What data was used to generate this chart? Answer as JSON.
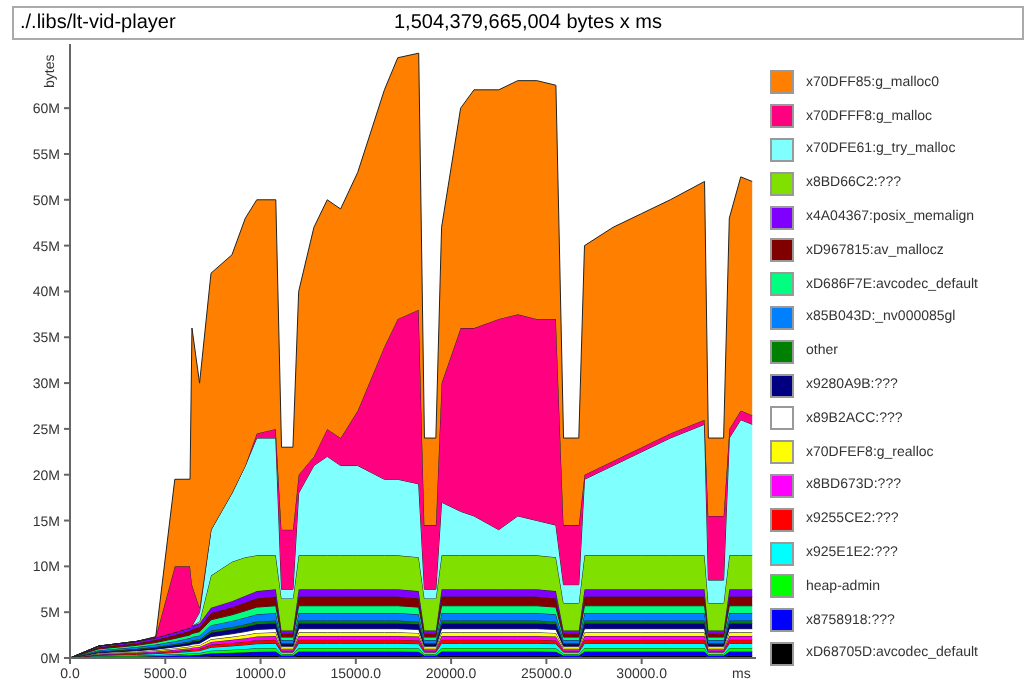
{
  "chart_data": {
    "type": "area",
    "stacked": true,
    "title": "./.libs/lt-vid-player",
    "subtitle": "1,504,379,665,004 bytes x ms",
    "xlabel": "ms",
    "ylabel": "bytes",
    "legend": "right",
    "x": [
      0,
      1500,
      3500,
      4500,
      5500,
      6300,
      6400,
      6800,
      7400,
      8500,
      9200,
      9800,
      10800,
      11100,
      11700,
      12000,
      12800,
      13500,
      14200,
      15100,
      16500,
      17200,
      18300,
      18600,
      19200,
      19500,
      20500,
      21200,
      22500,
      23500,
      24500,
      25500,
      25900,
      26700,
      27000,
      28500,
      30000,
      31500,
      33300,
      33500,
      34300,
      34600,
      35200,
      35800
    ],
    "xlim": [
      0,
      36000
    ],
    "xticks": [
      {
        "value": 0,
        "label": "0.0"
      },
      {
        "value": 5000,
        "label": "5000.0"
      },
      {
        "value": 10000,
        "label": "10000.0"
      },
      {
        "value": 15000,
        "label": "15000.0"
      },
      {
        "value": 20000,
        "label": "20000.0"
      },
      {
        "value": 25000,
        "label": "25000.0"
      },
      {
        "value": 30000,
        "label": "30000.0"
      }
    ],
    "ylim": [
      0,
      67
    ],
    "yticks": [
      {
        "value": 0,
        "label": "0M"
      },
      {
        "value": 5,
        "label": "5M"
      },
      {
        "value": 10,
        "label": "10M"
      },
      {
        "value": 15,
        "label": "15M"
      },
      {
        "value": 20,
        "label": "20M"
      },
      {
        "value": 25,
        "label": "25M"
      },
      {
        "value": 30,
        "label": "30M"
      },
      {
        "value": 35,
        "label": "35M"
      },
      {
        "value": 40,
        "label": "40M"
      },
      {
        "value": 45,
        "label": "45M"
      },
      {
        "value": 50,
        "label": "50M"
      },
      {
        "value": 55,
        "label": "55M"
      },
      {
        "value": 60,
        "label": "60M"
      }
    ],
    "series": [
      {
        "name": "xD68705D:avcodec_default",
        "color": "#000000",
        "values": [
          0,
          0.05,
          0.07,
          0.09,
          0.11,
          0.13,
          0.14,
          0.15,
          0.22,
          0.25,
          0.27,
          0.29,
          0.3,
          0.12,
          0.12,
          0.3,
          0.3,
          0.3,
          0.3,
          0.3,
          0.3,
          0.3,
          0.29,
          0.12,
          0.12,
          0.3,
          0.3,
          0.3,
          0.3,
          0.3,
          0.3,
          0.29,
          0.12,
          0.12,
          0.3,
          0.3,
          0.3,
          0.3,
          0.3,
          0.12,
          0.12,
          0.3,
          0.3,
          0.3
        ]
      },
      {
        "name": "x8758918:???",
        "color": "#0000ff",
        "values": [
          0,
          0.07,
          0.1,
          0.12,
          0.15,
          0.18,
          0.19,
          0.2,
          0.29,
          0.33,
          0.36,
          0.39,
          0.4,
          0.16,
          0.16,
          0.4,
          0.4,
          0.4,
          0.4,
          0.4,
          0.4,
          0.4,
          0.39,
          0.16,
          0.16,
          0.4,
          0.4,
          0.4,
          0.4,
          0.4,
          0.4,
          0.39,
          0.16,
          0.16,
          0.4,
          0.4,
          0.4,
          0.4,
          0.4,
          0.16,
          0.16,
          0.4,
          0.4,
          0.4
        ]
      },
      {
        "name": "heap-admin",
        "color": "#00ff00",
        "values": [
          0,
          0.07,
          0.1,
          0.12,
          0.15,
          0.18,
          0.19,
          0.2,
          0.29,
          0.33,
          0.36,
          0.39,
          0.4,
          0.16,
          0.16,
          0.4,
          0.4,
          0.4,
          0.4,
          0.4,
          0.4,
          0.4,
          0.39,
          0.16,
          0.16,
          0.4,
          0.4,
          0.4,
          0.4,
          0.4,
          0.4,
          0.39,
          0.16,
          0.16,
          0.4,
          0.4,
          0.4,
          0.4,
          0.4,
          0.16,
          0.16,
          0.4,
          0.4,
          0.4
        ]
      },
      {
        "name": "x925E1E2:???",
        "color": "#00ffff",
        "values": [
          0,
          0.09,
          0.12,
          0.15,
          0.19,
          0.22,
          0.23,
          0.25,
          0.37,
          0.41,
          0.45,
          0.49,
          0.5,
          0.2,
          0.2,
          0.5,
          0.5,
          0.5,
          0.5,
          0.5,
          0.5,
          0.5,
          0.49,
          0.2,
          0.2,
          0.5,
          0.5,
          0.5,
          0.5,
          0.5,
          0.5,
          0.49,
          0.2,
          0.2,
          0.5,
          0.5,
          0.5,
          0.5,
          0.5,
          0.2,
          0.2,
          0.5,
          0.5,
          0.5
        ]
      },
      {
        "name": "x9255CE2:???",
        "color": "#ff0000",
        "values": [
          0,
          0.07,
          0.1,
          0.12,
          0.15,
          0.18,
          0.19,
          0.2,
          0.29,
          0.33,
          0.36,
          0.39,
          0.4,
          0.16,
          0.16,
          0.4,
          0.4,
          0.4,
          0.4,
          0.4,
          0.4,
          0.4,
          0.39,
          0.16,
          0.16,
          0.4,
          0.4,
          0.4,
          0.4,
          0.4,
          0.4,
          0.39,
          0.16,
          0.16,
          0.4,
          0.4,
          0.4,
          0.4,
          0.4,
          0.16,
          0.16,
          0.4,
          0.4,
          0.4
        ]
      },
      {
        "name": "x8BD673D:???",
        "color": "#ff00ff",
        "values": [
          0,
          0.07,
          0.1,
          0.12,
          0.15,
          0.18,
          0.19,
          0.2,
          0.29,
          0.33,
          0.36,
          0.39,
          0.4,
          0.16,
          0.16,
          0.4,
          0.4,
          0.4,
          0.4,
          0.4,
          0.4,
          0.4,
          0.39,
          0.16,
          0.16,
          0.4,
          0.4,
          0.4,
          0.4,
          0.4,
          0.4,
          0.39,
          0.16,
          0.16,
          0.4,
          0.4,
          0.4,
          0.4,
          0.4,
          0.16,
          0.16,
          0.4,
          0.4,
          0.4
        ]
      },
      {
        "name": "x70DFEF8:g_realloc",
        "color": "#ffff00",
        "values": [
          0,
          0.07,
          0.1,
          0.12,
          0.15,
          0.18,
          0.19,
          0.2,
          0.29,
          0.33,
          0.36,
          0.39,
          0.4,
          0.16,
          0.16,
          0.4,
          0.4,
          0.4,
          0.4,
          0.4,
          0.4,
          0.4,
          0.39,
          0.16,
          0.16,
          0.4,
          0.4,
          0.4,
          0.4,
          0.4,
          0.4,
          0.39,
          0.16,
          0.16,
          0.4,
          0.4,
          0.4,
          0.4,
          0.4,
          0.16,
          0.16,
          0.4,
          0.4,
          0.4
        ]
      },
      {
        "name": "x89B2ACC:???",
        "color": "#ffffff",
        "values": [
          0,
          0.07,
          0.1,
          0.12,
          0.15,
          0.18,
          0.19,
          0.2,
          0.29,
          0.33,
          0.36,
          0.39,
          0.4,
          0.16,
          0.16,
          0.4,
          0.4,
          0.4,
          0.4,
          0.4,
          0.4,
          0.4,
          0.39,
          0.16,
          0.16,
          0.4,
          0.4,
          0.4,
          0.4,
          0.4,
          0.4,
          0.39,
          0.16,
          0.16,
          0.4,
          0.4,
          0.4,
          0.4,
          0.4,
          0.16,
          0.16,
          0.4,
          0.4,
          0.4
        ]
      },
      {
        "name": "x9280A9B:???",
        "color": "#000080",
        "values": [
          0,
          0.1,
          0.14,
          0.18,
          0.22,
          0.26,
          0.28,
          0.3,
          0.44,
          0.5,
          0.54,
          0.58,
          0.6,
          0.24,
          0.24,
          0.6,
          0.6,
          0.6,
          0.6,
          0.6,
          0.6,
          0.6,
          0.58,
          0.24,
          0.24,
          0.6,
          0.6,
          0.6,
          0.6,
          0.6,
          0.6,
          0.58,
          0.24,
          0.24,
          0.6,
          0.6,
          0.6,
          0.6,
          0.6,
          0.24,
          0.24,
          0.6,
          0.6,
          0.6
        ]
      },
      {
        "name": "other",
        "color": "#008000",
        "values": [
          0,
          0.05,
          0.07,
          0.09,
          0.11,
          0.13,
          0.14,
          0.15,
          0.22,
          0.25,
          0.27,
          0.29,
          0.3,
          0.12,
          0.12,
          0.3,
          0.3,
          0.3,
          0.3,
          0.3,
          0.3,
          0.3,
          0.29,
          0.12,
          0.12,
          0.3,
          0.3,
          0.3,
          0.3,
          0.3,
          0.3,
          0.29,
          0.12,
          0.12,
          0.3,
          0.3,
          0.3,
          0.3,
          0.3,
          0.12,
          0.12,
          0.3,
          0.3,
          0.3
        ]
      },
      {
        "name": "x85B043D:_nv000085gl",
        "color": "#0080ff",
        "values": [
          0,
          0.14,
          0.19,
          0.23,
          0.3,
          0.35,
          0.37,
          0.41,
          0.59,
          0.66,
          0.73,
          0.78,
          0.8,
          0.32,
          0.32,
          0.8,
          0.8,
          0.8,
          0.8,
          0.8,
          0.8,
          0.8,
          0.78,
          0.32,
          0.32,
          0.8,
          0.8,
          0.8,
          0.8,
          0.8,
          0.8,
          0.78,
          0.32,
          0.32,
          0.8,
          0.8,
          0.8,
          0.8,
          0.8,
          0.32,
          0.32,
          0.8,
          0.8,
          0.8
        ]
      },
      {
        "name": "xD686F7E:avcodec_default",
        "color": "#00ff80",
        "values": [
          0,
          0.14,
          0.19,
          0.23,
          0.3,
          0.35,
          0.37,
          0.41,
          0.59,
          0.66,
          0.73,
          0.78,
          0.8,
          0.32,
          0.32,
          0.8,
          0.8,
          0.8,
          0.8,
          0.8,
          0.8,
          0.8,
          0.78,
          0.32,
          0.32,
          0.8,
          0.8,
          0.8,
          0.8,
          0.8,
          0.8,
          0.78,
          0.32,
          0.32,
          0.8,
          0.8,
          0.8,
          0.8,
          0.8,
          0.32,
          0.32,
          0.8,
          0.8,
          0.8
        ]
      },
      {
        "name": "xD967815:av_mallocz",
        "color": "#800000",
        "values": [
          0,
          0.17,
          0.24,
          0.29,
          0.37,
          0.44,
          0.47,
          0.51,
          0.73,
          0.83,
          0.91,
          0.97,
          1,
          0.4,
          0.4,
          1,
          1,
          1,
          1,
          1,
          1,
          1,
          0.97,
          0.4,
          0.4,
          1,
          1,
          1,
          1,
          1,
          1,
          0.97,
          0.4,
          0.4,
          1,
          1,
          1,
          1,
          1,
          0.4,
          0.4,
          1,
          1,
          1
        ]
      },
      {
        "name": "x4A04367:posix_memalign",
        "color": "#8000ff",
        "values": [
          0,
          0.14,
          0.19,
          0.23,
          0.3,
          0.35,
          0.37,
          0.41,
          0.59,
          0.66,
          0.73,
          0.78,
          0.8,
          0.32,
          0.32,
          0.8,
          0.8,
          0.8,
          0.8,
          0.8,
          0.8,
          0.8,
          0.78,
          0.32,
          0.32,
          0.8,
          0.8,
          0.8,
          0.8,
          0.8,
          0.8,
          0.78,
          0.32,
          0.32,
          0.8,
          0.8,
          0.8,
          0.8,
          0.8,
          0.32,
          0.32,
          0.8,
          0.8,
          0.8
        ]
      },
      {
        "name": "x8BD66C2:???",
        "color": "#80e000",
        "values": [
          0,
          0,
          0,
          0,
          0,
          0,
          0,
          0.2,
          3.5,
          4.3,
          4.2,
          3.9,
          3.7,
          3.5,
          3.5,
          3.7,
          3.7,
          3.7,
          3.7,
          3.7,
          3.7,
          3.7,
          3.7,
          3.5,
          3.5,
          3.7,
          3.7,
          3.7,
          3.7,
          3.7,
          3.7,
          3.7,
          3,
          3,
          3.7,
          3.7,
          3.7,
          3.7,
          3.7,
          3,
          3,
          3.7,
          3.7,
          3.7
        ]
      },
      {
        "name": "x70DFE61:g_try_malloc",
        "color": "#80ffff",
        "values": [
          0,
          0,
          0,
          0,
          0,
          0,
          0,
          1,
          5,
          7.5,
          10,
          12.8,
          12.8,
          1,
          1,
          6.8,
          9.8,
          10.8,
          9.8,
          9.8,
          8.3,
          8.3,
          8,
          1,
          1,
          5.8,
          4.8,
          4.3,
          2.8,
          4.3,
          3.8,
          3.5,
          2,
          2,
          8.3,
          9.8,
          11.3,
          12.8,
          14.3,
          2.5,
          2.5,
          12.8,
          14.8,
          14.3
        ]
      },
      {
        "name": "x70DFFF8:g_malloc",
        "color": "#ff0080",
        "values": [
          0,
          0,
          0,
          0.1,
          7.2,
          6.7,
          4.5,
          0.5,
          0,
          0,
          0,
          0.5,
          1,
          6.5,
          6.5,
          2,
          1,
          3,
          3,
          6,
          14.5,
          17.5,
          19,
          7,
          7,
          13,
          20,
          20.5,
          23,
          22,
          22,
          22.5,
          6.5,
          6.5,
          0.5,
          0.5,
          0.5,
          0.5,
          0.5,
          7,
          7,
          1,
          1,
          1
        ]
      },
      {
        "name": "x70DFF85:g_malloc0",
        "color": "#ff8000",
        "values": [
          0,
          0,
          0,
          0,
          9.5,
          9.5,
          28,
          24.5,
          28,
          26,
          27,
          25.5,
          25,
          9,
          9,
          20,
          25,
          25,
          25,
          26,
          28,
          28.5,
          28,
          9.5,
          9.5,
          17,
          24,
          26,
          25,
          25.5,
          26,
          25.5,
          9.5,
          9.5,
          25,
          25.5,
          25.5,
          25.5,
          26,
          8.5,
          8.5,
          23,
          25.5,
          25.5
        ]
      }
    ]
  }
}
